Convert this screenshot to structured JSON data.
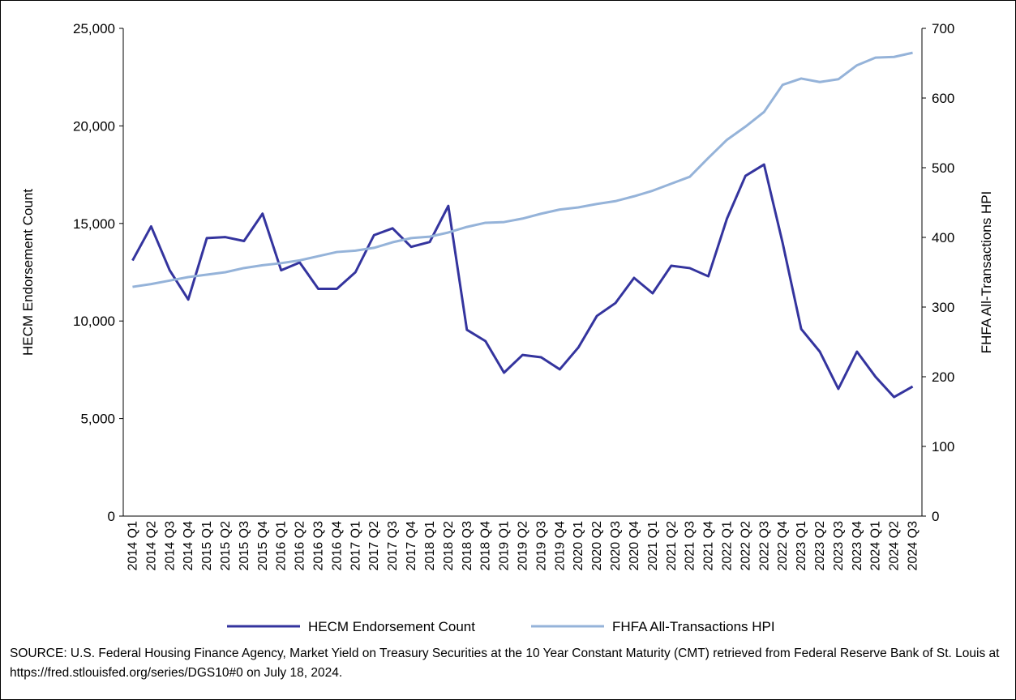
{
  "chart_data": {
    "type": "line",
    "categories": [
      "2014 Q1",
      "2014 Q2",
      "2014 Q3",
      "2014 Q4",
      "2015 Q1",
      "2015 Q2",
      "2015 Q3",
      "2015 Q4",
      "2016 Q1",
      "2016 Q2",
      "2016 Q3",
      "2016 Q4",
      "2017 Q1",
      "2017 Q2",
      "2017 Q3",
      "2017 Q4",
      "2018 Q1",
      "2018 Q2",
      "2018 Q3",
      "2018 Q4",
      "2019 Q1",
      "2019 Q2",
      "2019 Q3",
      "2019 Q4",
      "2020 Q1",
      "2020 Q2",
      "2020 Q3",
      "2020 Q4",
      "2021 Q1",
      "2021 Q2",
      "2021 Q3",
      "2021 Q4",
      "2022 Q1",
      "2022 Q2",
      "2022 Q3",
      "2022 Q4",
      "2023 Q1",
      "2023 Q2",
      "2023 Q3",
      "2023 Q4",
      "2024 Q1",
      "2024 Q2",
      "2024 Q3"
    ],
    "series": [
      {
        "name": "HECM Endorsement Count",
        "color": "#34349e",
        "values": [
          13100,
          14850,
          12600,
          11100,
          14250,
          14300,
          14100,
          15500,
          12600,
          13000,
          11650,
          11650,
          12500,
          14400,
          14750,
          13800,
          14050,
          15900,
          9550,
          8970,
          7350,
          8260,
          8140,
          7520,
          8640,
          10260,
          10920,
          12210,
          11420,
          12830,
          12710,
          12290,
          15240,
          17440,
          18020,
          14000,
          9590,
          8430,
          6520,
          8430,
          7140,
          6100,
          6640
        ]
      },
      {
        "name": "FHFA All-Transactions HPI",
        "color": "#95b3d9",
        "axis": "y2",
        "values": [
          329,
          333,
          338,
          343,
          346.5,
          350,
          356,
          360,
          363,
          367,
          373,
          379,
          381,
          385,
          393,
          399,
          401,
          407,
          415,
          421,
          422,
          427,
          434,
          440,
          443,
          448,
          452,
          459,
          467,
          477,
          487,
          514,
          540,
          559,
          580,
          619,
          628,
          623,
          627,
          647,
          658,
          659,
          665
        ]
      }
    ],
    "ylabel": "HECM Endorsement Count",
    "y2label": "FHFA All-Transactions HPI",
    "ylim": [
      0,
      25000
    ],
    "yticks": [
      0,
      {
        "value": 5000,
        "label": "5,000"
      },
      {
        "value": 10000,
        "label": "10,000"
      },
      {
        "value": 15000,
        "label": "15,000"
      },
      {
        "value": 20000,
        "label": "20,000"
      },
      {
        "value": 25000,
        "label": "25,000"
      }
    ],
    "y2lim": [
      0,
      700
    ],
    "y2ticks": [
      0,
      100,
      200,
      300,
      400,
      500,
      600,
      700
    ],
    "grid": false,
    "legend": "bottom",
    "source": "SOURCE: U.S. Federal Housing Finance Agency, Market Yield on Treasury Securities at the 10 Year Constant Maturity (CMT) retrieved from Federal Reserve Bank of St. Louis at https://fred.stlouisfed.org/series/DGS10#0 on July 18, 2024."
  }
}
